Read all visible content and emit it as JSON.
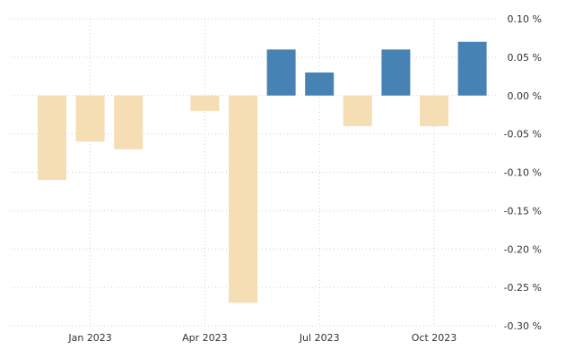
{
  "chart_data": {
    "type": "bar",
    "title": "",
    "xlabel": "",
    "ylabel": "",
    "x": [
      "2022-12",
      "2023-01",
      "2023-02",
      "2023-03",
      "2023-04",
      "2023-05",
      "2023-06",
      "2023-07",
      "2023-08",
      "2023-09",
      "2023-10",
      "2023-11"
    ],
    "values": [
      -0.11,
      -0.06,
      -0.07,
      0.0,
      -0.02,
      -0.27,
      0.06,
      0.03,
      -0.04,
      0.06,
      -0.04,
      0.07
    ],
    "ylim": [
      -0.3,
      0.1
    ],
    "y_ticks": [
      0.1,
      0.05,
      0.0,
      -0.05,
      -0.1,
      -0.15,
      -0.2,
      -0.25,
      -0.3
    ],
    "y_tick_labels": [
      "0.10 %",
      "0.05 %",
      "0.00 %",
      "-0.05 %",
      "-0.10 %",
      "-0.15 %",
      "-0.20 %",
      "-0.25 %",
      "-0.30 %"
    ],
    "x_ticks": [
      "2023-01",
      "2023-04",
      "2023-07",
      "2023-10"
    ],
    "x_tick_labels": [
      "Jan 2023",
      "Apr 2023",
      "Jul 2023",
      "Oct 2023"
    ],
    "y_axis_position": "right",
    "grid": true,
    "legend": "none",
    "colors": {
      "positive": "#4682b4",
      "negative": "#f5deb3",
      "grid": "#d0d0d0"
    }
  }
}
